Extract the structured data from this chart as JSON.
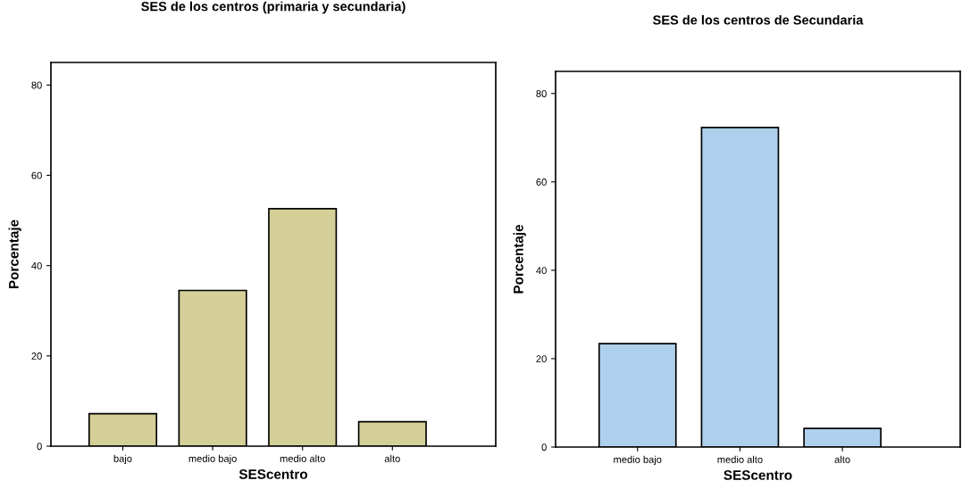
{
  "chart_data": [
    {
      "type": "bar",
      "title": "SES de los centros (primaria y secundaria)",
      "xlabel": "SEScentro",
      "ylabel": "Porcentaje",
      "categories": [
        "bajo",
        "medio bajo",
        "medio alto",
        "alto"
      ],
      "values": [
        7.2,
        34.5,
        52.6,
        5.4
      ],
      "color": "#d3cf97",
      "ylim": [
        0,
        85
      ],
      "yticks": [
        0,
        20,
        40,
        60,
        80
      ],
      "grid": false
    },
    {
      "type": "bar",
      "title": "SES de los centros de Secundaria",
      "xlabel": "SEScentro",
      "ylabel": "Porcentaje",
      "categories": [
        "medio bajo",
        "medio alto",
        "alto"
      ],
      "values": [
        23.4,
        72.3,
        4.2
      ],
      "color": "#aed0ed",
      "ylim": [
        0,
        85
      ],
      "yticks": [
        0,
        20,
        40,
        60,
        80
      ],
      "grid": false
    }
  ]
}
